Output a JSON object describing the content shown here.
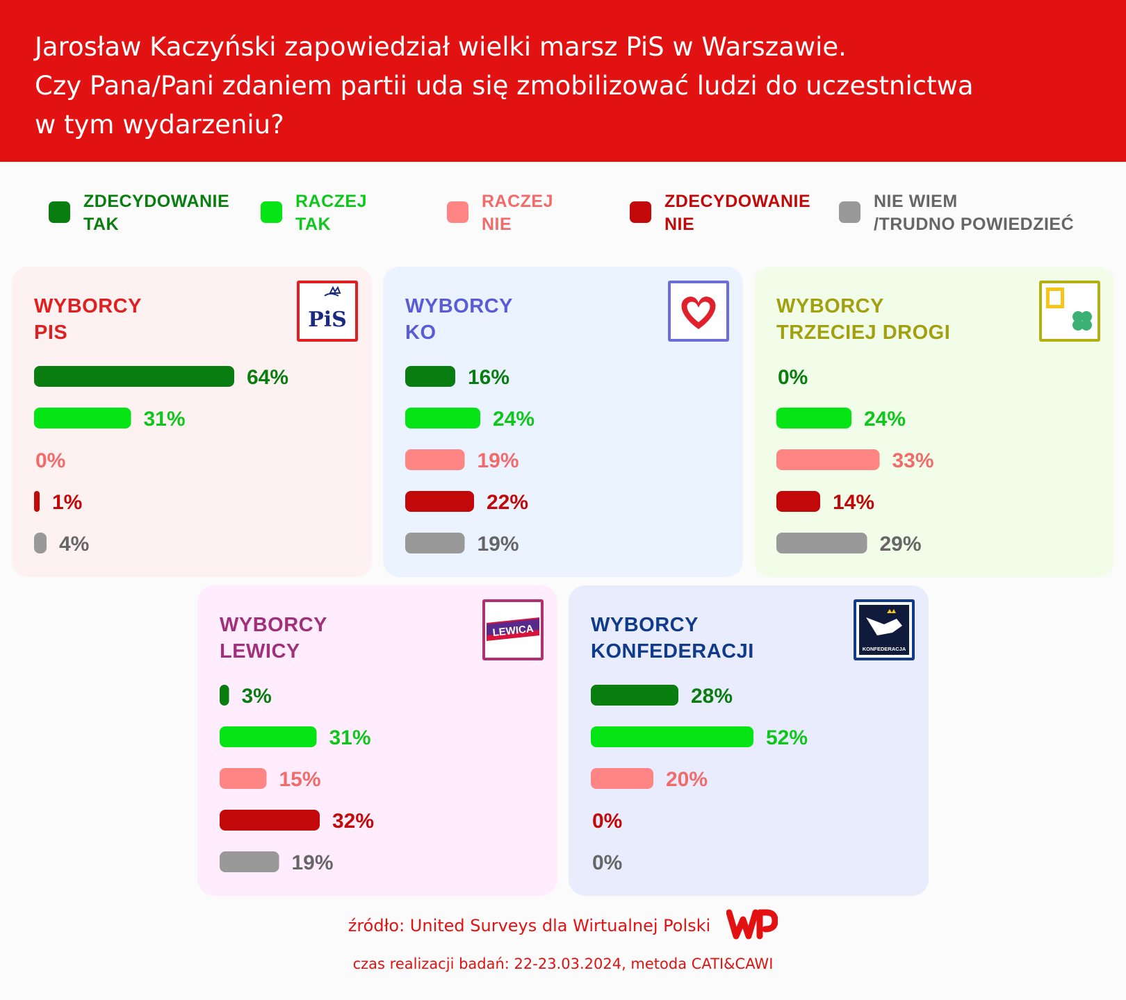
{
  "header": {
    "title": "Jarosław Kaczyński zapowiedział wielki marsz PiS w Warszawie.\nCzy Pana/Pani zdaniem partii uda się zmobilizować ludzi do uczestnictwa\nw tym wydarzeniu?"
  },
  "legend": [
    {
      "label": "ZDECYDOWANIE\nTAK",
      "color": "#0a7d10",
      "text_color": "#0a7d10"
    },
    {
      "label": "RACZEJ\nTAK",
      "color": "#05e515",
      "text_color": "#0fc71c"
    },
    {
      "label": "RACZEJ\nNIE",
      "color": "#ff8585",
      "text_color": "#f26b6b"
    },
    {
      "label": "ZDECYDOWANIE\nNIE",
      "color": "#c20808",
      "text_color": "#c20808"
    },
    {
      "label": "NIE WIEM\n/TRUDNO POWIEDZIEĆ",
      "color": "#999999",
      "text_color": "#666666"
    }
  ],
  "colors": {
    "header_bg": "#e21212",
    "def_tak": "#0a7d10",
    "raczej_tak": "#05e515",
    "raczej_nie": "#ff8585",
    "def_nie": "#c20808",
    "nie_wiem": "#999999"
  },
  "panels": [
    {
      "title": "WYBORCY\nPIS",
      "title_color": "#e02020",
      "bg": "#fdf1f1",
      "logo": "pis-logo",
      "logo_border": "#e02020",
      "logo_text": "PiS"
    },
    {
      "title": "WYBORCY\nKO",
      "title_color": "#5a5cd6",
      "bg": "#eaf3ff",
      "logo": "heart-logo",
      "logo_border": "#6b6ed8",
      "logo_text": ""
    },
    {
      "title": "WYBORCY\nTRZECIEJ DROGI",
      "title_color": "#a0a010",
      "bg": "#f1fde8",
      "logo": "clover-logo",
      "logo_border": "#b0b010",
      "logo_text": ""
    },
    {
      "title": "WYBORCY\nLEWICY",
      "title_color": "#a0307a",
      "bg": "#ffedfd",
      "logo": "lewica-logo",
      "logo_border": "#b03070",
      "logo_text": "LEWICA"
    },
    {
      "title": "WYBORCY\nKONFEDERACJI",
      "title_color": "#103a8a",
      "bg": "#e9ecfc",
      "logo": "konfederacja-logo",
      "logo_border": "#103a8a",
      "logo_text": "KONFEDERACJA"
    }
  ],
  "chart_data": {
    "type": "bar",
    "categories": [
      "ZDECYDOWANIE TAK",
      "RACZEJ TAK",
      "RACZEJ NIE",
      "ZDECYDOWANIE NIE",
      "NIE WIEM /TRUDNO POWIEDZIEĆ"
    ],
    "unit": "%",
    "series": [
      {
        "name": "WYBORCY PIS",
        "values": [
          64,
          31,
          0,
          1,
          4
        ],
        "labels": [
          "64%",
          "31%",
          "0%",
          "1%",
          "4%"
        ]
      },
      {
        "name": "WYBORCY KO",
        "values": [
          16,
          24,
          19,
          22,
          19
        ],
        "labels": [
          "16%",
          "24%",
          "19%",
          "22%",
          "19%"
        ]
      },
      {
        "name": "WYBORCY TRZECIEJ DROGI",
        "values": [
          0,
          24,
          33,
          14,
          29
        ],
        "labels": [
          "0%",
          "24%",
          "33%",
          "14%",
          "29%"
        ]
      },
      {
        "name": "WYBORCY LEWICY",
        "values": [
          3,
          31,
          15,
          32,
          19
        ],
        "labels": [
          "3%",
          "31%",
          "15%",
          "32%",
          "19%"
        ]
      },
      {
        "name": "WYBORCY KONFEDERACJI",
        "values": [
          28,
          52,
          20,
          0,
          0
        ],
        "labels": [
          "28%",
          "52%",
          "20%",
          "0%",
          "0%"
        ]
      }
    ]
  },
  "source": {
    "line1": "źródło: United Surveys dla Wirtualnej Polski",
    "line2": "czas realizacji badań: 22-23.03.2024, metoda CATI&CAWI",
    "brand": "WP"
  }
}
